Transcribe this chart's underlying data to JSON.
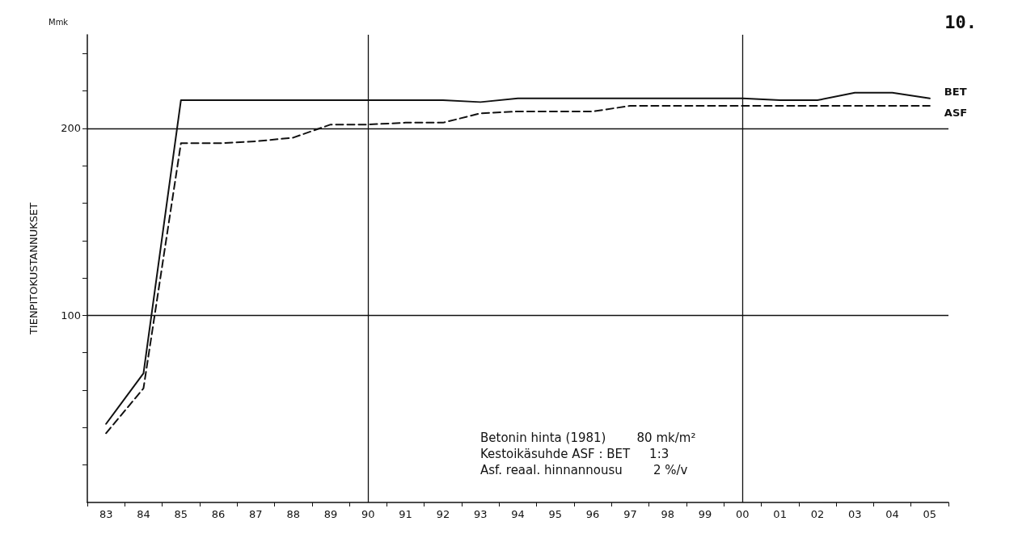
{
  "chart_data": {
    "type": "line",
    "ylabel": "TIENPITOKUSTANNUKSET",
    "categories": [
      "83",
      "84",
      "85",
      "86",
      "87",
      "88",
      "89",
      "90",
      "91",
      "92",
      "93",
      "94",
      "95",
      "96",
      "97",
      "98",
      "99",
      "00",
      "01",
      "02",
      "03",
      "04",
      "05"
    ],
    "series": [
      {
        "name": "BET",
        "color": "#111111",
        "line_style": "solid",
        "values": [
          42,
          69,
          215,
          215,
          215,
          215,
          215,
          215,
          215,
          215,
          214,
          216,
          216,
          216,
          216,
          216,
          216,
          216,
          215,
          215,
          219,
          219,
          216
        ]
      },
      {
        "name": "ASF",
        "color": "#111111",
        "line_style": "dashed",
        "values": [
          37,
          61,
          192,
          192,
          193,
          195,
          202,
          202,
          203,
          203,
          208,
          209,
          209,
          209,
          212,
          212,
          212,
          212,
          212,
          212,
          212,
          212,
          212
        ]
      }
    ],
    "ylim": [
      0,
      250
    ],
    "yticks": [
      {
        "value": 20,
        "label": null
      },
      {
        "value": 40,
        "label": null
      },
      {
        "value": 60,
        "label": null
      },
      {
        "value": 80,
        "label": null
      },
      100,
      {
        "value": 120,
        "label": null
      },
      {
        "value": 140,
        "label": null
      },
      {
        "value": 160,
        "label": null
      },
      {
        "value": 180,
        "label": null
      },
      200,
      {
        "value": 220,
        "label": null
      },
      {
        "value": 240,
        "label": null
      }
    ],
    "ref_lines": [
      {
        "axis": "y",
        "value": 100
      },
      {
        "axis": "y",
        "value": 200
      },
      {
        "axis": "x",
        "value": "90"
      },
      {
        "axis": "x",
        "value": "00"
      }
    ],
    "marker": "none",
    "grid": false,
    "legend": false,
    "annotations": [
      "Mmk",
      "10.",
      "Betonin hinta (1981)        80 mk/m²",
      "Kestoikäsuhde ASF : BET     1:3",
      "Asf. reaal. hinnannousu        2 %/v"
    ]
  }
}
